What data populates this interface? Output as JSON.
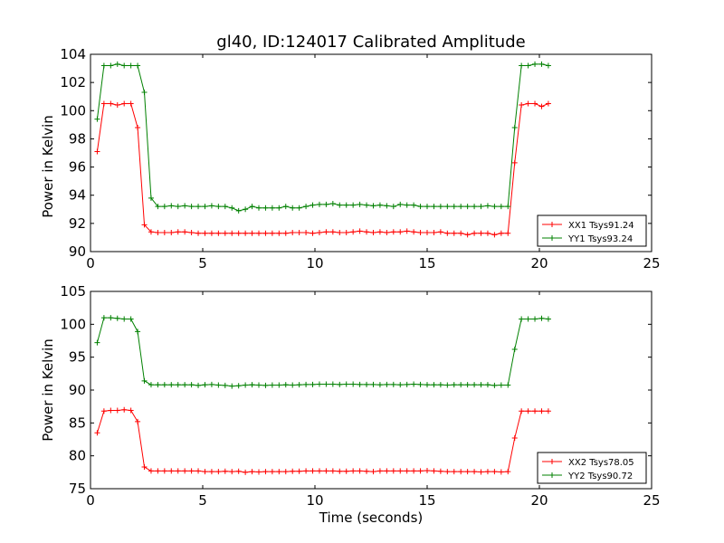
{
  "chart_data": [
    {
      "type": "line",
      "title": "gl40, ID:124017 Calibrated Amplitude",
      "xlabel": "",
      "ylabel": "Power in Kelvin",
      "xlim": [
        0,
        25
      ],
      "ylim": [
        90,
        104
      ],
      "xticks": [
        "0",
        "5",
        "10",
        "15",
        "20",
        "25"
      ],
      "yticks": [
        "90",
        "92",
        "94",
        "96",
        "98",
        "100",
        "102",
        "104"
      ],
      "grid": false,
      "legend": "lower-right",
      "x": [
        0.3,
        0.6,
        0.9,
        1.2,
        1.5,
        1.8,
        2.1,
        2.4,
        2.7,
        3.0,
        3.3,
        3.6,
        3.9,
        4.2,
        4.5,
        4.8,
        5.1,
        5.4,
        5.7,
        6.0,
        6.3,
        6.6,
        6.9,
        7.2,
        7.5,
        7.8,
        8.1,
        8.4,
        8.7,
        9.0,
        9.3,
        9.6,
        9.9,
        10.2,
        10.5,
        10.8,
        11.1,
        11.4,
        11.7,
        12.0,
        12.3,
        12.6,
        12.9,
        13.2,
        13.5,
        13.8,
        14.1,
        14.4,
        14.7,
        15.0,
        15.3,
        15.6,
        15.9,
        16.2,
        16.5,
        16.8,
        17.1,
        17.4,
        17.7,
        18.0,
        18.3,
        18.6,
        18.9,
        19.2,
        19.5,
        19.8,
        20.1,
        20.4
      ],
      "series": [
        {
          "name": "XX1 Tsys91.24",
          "color": "#ff0000",
          "values": [
            97.1,
            100.5,
            100.5,
            100.4,
            100.5,
            100.5,
            98.8,
            91.9,
            91.4,
            91.35,
            91.35,
            91.35,
            91.4,
            91.4,
            91.35,
            91.3,
            91.3,
            91.3,
            91.3,
            91.3,
            91.3,
            91.3,
            91.3,
            91.3,
            91.3,
            91.3,
            91.3,
            91.3,
            91.3,
            91.35,
            91.35,
            91.35,
            91.3,
            91.35,
            91.4,
            91.4,
            91.35,
            91.35,
            91.4,
            91.45,
            91.4,
            91.35,
            91.4,
            91.35,
            91.4,
            91.4,
            91.45,
            91.4,
            91.35,
            91.35,
            91.35,
            91.4,
            91.3,
            91.3,
            91.3,
            91.2,
            91.3,
            91.3,
            91.3,
            91.2,
            91.3,
            91.3,
            96.3,
            100.4,
            100.5,
            100.5,
            100.3,
            100.5
          ]
        },
        {
          "name": "YY1 Tsys93.24",
          "color": "#008000",
          "values": [
            99.4,
            103.2,
            103.2,
            103.3,
            103.2,
            103.2,
            103.2,
            101.3,
            93.8,
            93.2,
            93.2,
            93.25,
            93.2,
            93.25,
            93.2,
            93.2,
            93.2,
            93.25,
            93.2,
            93.2,
            93.1,
            92.9,
            93.0,
            93.2,
            93.1,
            93.1,
            93.1,
            93.1,
            93.2,
            93.1,
            93.1,
            93.2,
            93.3,
            93.35,
            93.35,
            93.4,
            93.3,
            93.3,
            93.3,
            93.35,
            93.3,
            93.25,
            93.3,
            93.25,
            93.2,
            93.35,
            93.3,
            93.3,
            93.2,
            93.2,
            93.2,
            93.2,
            93.2,
            93.2,
            93.2,
            93.2,
            93.2,
            93.2,
            93.25,
            93.2,
            93.2,
            93.2,
            98.8,
            103.2,
            103.2,
            103.3,
            103.3,
            103.2
          ]
        }
      ]
    },
    {
      "type": "line",
      "title": "",
      "xlabel": "Time (seconds)",
      "ylabel": "Power in Kelvin",
      "xlim": [
        0,
        25
      ],
      "ylim": [
        75,
        105
      ],
      "xticks": [
        "0",
        "5",
        "10",
        "15",
        "20",
        "25"
      ],
      "yticks": [
        "75",
        "80",
        "85",
        "90",
        "95",
        "100",
        "105"
      ],
      "grid": false,
      "legend": "lower-right",
      "x": [
        0.3,
        0.6,
        0.9,
        1.2,
        1.5,
        1.8,
        2.1,
        2.4,
        2.7,
        3.0,
        3.3,
        3.6,
        3.9,
        4.2,
        4.5,
        4.8,
        5.1,
        5.4,
        5.7,
        6.0,
        6.3,
        6.6,
        6.9,
        7.2,
        7.5,
        7.8,
        8.1,
        8.4,
        8.7,
        9.0,
        9.3,
        9.6,
        9.9,
        10.2,
        10.5,
        10.8,
        11.1,
        11.4,
        11.7,
        12.0,
        12.3,
        12.6,
        12.9,
        13.2,
        13.5,
        13.8,
        14.1,
        14.4,
        14.7,
        15.0,
        15.3,
        15.6,
        15.9,
        16.2,
        16.5,
        16.8,
        17.1,
        17.4,
        17.7,
        18.0,
        18.3,
        18.6,
        18.9,
        19.2,
        19.5,
        19.8,
        20.1,
        20.4
      ],
      "series": [
        {
          "name": "XX2 Tsys78.05",
          "color": "#ff0000",
          "values": [
            83.5,
            86.8,
            86.9,
            86.9,
            87.0,
            86.9,
            85.2,
            78.3,
            77.7,
            77.7,
            77.7,
            77.7,
            77.7,
            77.7,
            77.7,
            77.7,
            77.6,
            77.6,
            77.6,
            77.65,
            77.6,
            77.65,
            77.5,
            77.6,
            77.55,
            77.6,
            77.6,
            77.6,
            77.6,
            77.65,
            77.65,
            77.7,
            77.7,
            77.7,
            77.7,
            77.7,
            77.65,
            77.65,
            77.7,
            77.7,
            77.65,
            77.6,
            77.7,
            77.7,
            77.7,
            77.7,
            77.7,
            77.7,
            77.7,
            77.75,
            77.7,
            77.65,
            77.6,
            77.6,
            77.6,
            77.6,
            77.6,
            77.55,
            77.6,
            77.6,
            77.55,
            77.6,
            82.7,
            86.8,
            86.8,
            86.8,
            86.8,
            86.8
          ]
        },
        {
          "name": "YY2 Tsys90.72",
          "color": "#008000",
          "values": [
            97.2,
            101.0,
            101.0,
            100.9,
            100.8,
            100.8,
            98.9,
            91.4,
            90.8,
            90.8,
            90.8,
            90.8,
            90.8,
            90.8,
            90.8,
            90.7,
            90.8,
            90.85,
            90.75,
            90.7,
            90.6,
            90.65,
            90.75,
            90.8,
            90.75,
            90.7,
            90.75,
            90.75,
            90.8,
            90.75,
            90.8,
            90.85,
            90.85,
            90.9,
            90.9,
            90.9,
            90.85,
            90.9,
            90.9,
            90.85,
            90.85,
            90.85,
            90.8,
            90.85,
            90.85,
            90.8,
            90.85,
            90.9,
            90.85,
            90.8,
            90.8,
            90.8,
            90.75,
            90.8,
            90.8,
            90.8,
            90.8,
            90.8,
            90.8,
            90.7,
            90.75,
            90.75,
            96.2,
            100.8,
            100.8,
            100.8,
            100.9,
            100.8
          ]
        }
      ]
    }
  ]
}
